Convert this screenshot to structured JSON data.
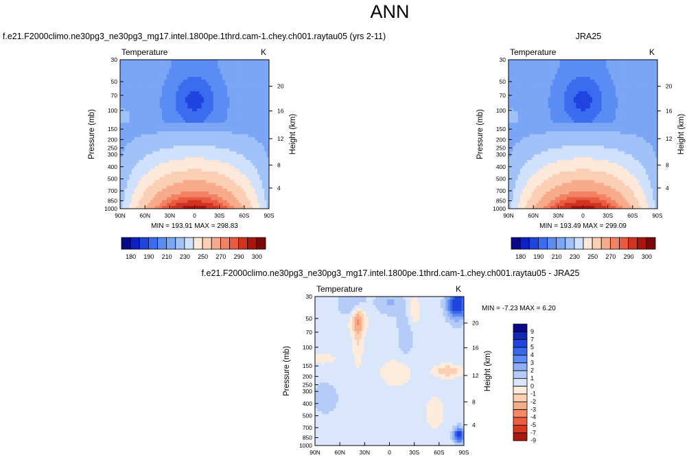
{
  "page": {
    "title": "ANN"
  },
  "colors": {
    "abs_scale": [
      "#08088c",
      "#0d20c8",
      "#1f44e0",
      "#3b6cf0",
      "#5a8cf4",
      "#7ba6f6",
      "#a0c2f8",
      "#cfe1fb",
      "#fde8da",
      "#fbcfb5",
      "#f8ab8a",
      "#f38264",
      "#e95a3e",
      "#d03320",
      "#a8160f",
      "#7a0909"
    ],
    "abs_labels": [
      "180",
      "190",
      "210",
      "230",
      "250",
      "270",
      "290",
      "300"
    ],
    "diff_scale": [
      "#0a0a8a",
      "#1428b4",
      "#1f44e0",
      "#3a67ec",
      "#5a8af2",
      "#8eaef5",
      "#b5cbf7",
      "#d9e6fb",
      "#fdebdc",
      "#fbcfb3",
      "#f8ad8a",
      "#f48764",
      "#ec5e3e",
      "#d6381e",
      "#a9180c"
    ],
    "diff_labels": [
      "9",
      "7",
      "5",
      "4",
      "3",
      "2",
      "1",
      "0",
      "-1",
      "-2",
      "-3",
      "-4",
      "-5",
      "-7",
      "-9"
    ]
  },
  "chart_data": [
    {
      "type": "heatmap",
      "title": "f.e21.F2000climo.ne30pg3_ne30pg3_mg17.intel.1800pe.1thrd.cam-1.chey.ch001.raytau05 (yrs 2-11)",
      "left_label": "Temperature",
      "right_label": "K",
      "ylabel": "Pressure (mb)",
      "ylabel_right": "Height (km)",
      "x_ticks": [
        "90N",
        "60N",
        "30N",
        "0",
        "30S",
        "60S",
        "90S"
      ],
      "y_ticks": [
        "30",
        "50",
        "70",
        "100",
        "150",
        "200",
        "250",
        "300",
        "400",
        "500",
        "700",
        "850",
        "1000"
      ],
      "y_right_ticks": [
        "20",
        "16",
        "12",
        "8",
        "4"
      ],
      "stats": "MIN = 193.91   MAX = 298.83",
      "min": 193.91,
      "max": 298.83
    },
    {
      "type": "heatmap",
      "title": "JRA25",
      "left_label": "Temperature",
      "right_label": "K",
      "ylabel": "Pressure (mb)",
      "ylabel_right": "Height (km)",
      "x_ticks": [
        "90N",
        "60N",
        "30N",
        "0",
        "30S",
        "60S",
        "90S"
      ],
      "y_ticks": [
        "30",
        "50",
        "70",
        "100",
        "150",
        "200",
        "250",
        "300",
        "400",
        "500",
        "700",
        "850",
        "1000"
      ],
      "y_right_ticks": [
        "20",
        "16",
        "12",
        "8",
        "4"
      ],
      "stats": "MIN = 193.49   MAX = 299.09",
      "min": 193.49,
      "max": 299.09
    },
    {
      "type": "heatmap",
      "title": "f.e21.F2000climo.ne30pg3_ne30pg3_mg17.intel.1800pe.1thrd.cam-1.chey.ch001.raytau05 - JRA25",
      "left_label": "Temperature",
      "right_label": "K",
      "ylabel": "Pressure (mb)",
      "ylabel_right": "Height (km)",
      "x_ticks": [
        "90N",
        "60N",
        "30N",
        "0",
        "30S",
        "60S",
        "90S"
      ],
      "y_ticks": [
        "30",
        "50",
        "70",
        "100",
        "150",
        "200",
        "250",
        "300",
        "400",
        "500",
        "700",
        "850",
        "1000"
      ],
      "y_right_ticks": [
        "20",
        "16",
        "12",
        "8",
        "4"
      ],
      "stats": "MIN = -7.23   MAX =   6.20",
      "min": -7.23,
      "max": 6.2
    }
  ]
}
